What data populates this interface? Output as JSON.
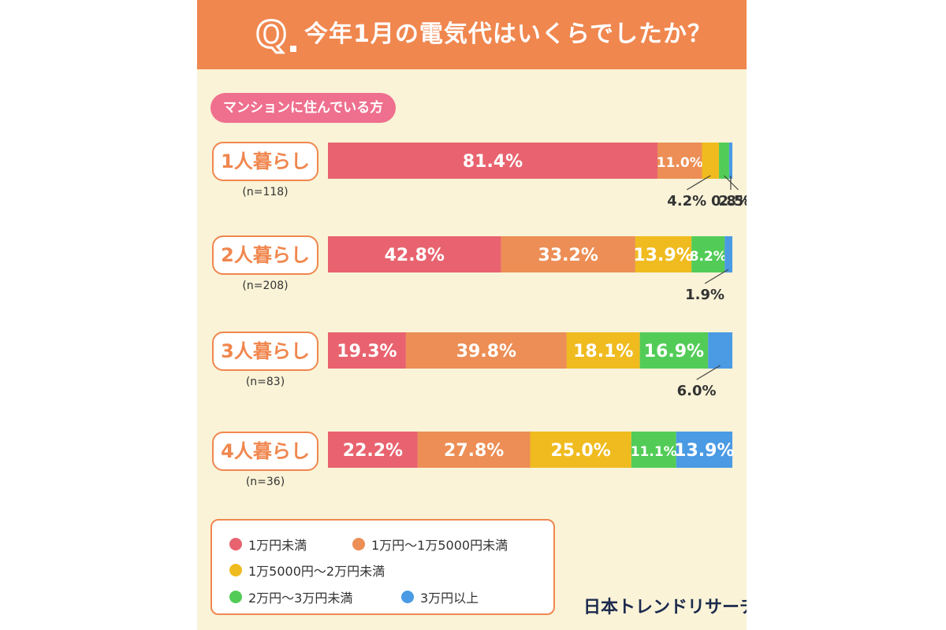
{
  "question": {
    "marker": "Q",
    "text": "今年1月の電気代はいくらでしたか？"
  },
  "group_label": "マンションに住んでいる方",
  "chart_data": {
    "type": "bar",
    "orientation": "horizontal",
    "stacked": true,
    "categories": [
      "1人暮らし",
      "2人暮らし",
      "3人暮らし",
      "4人暮らし"
    ],
    "sample_sizes": [
      "(n=118)",
      "(n=208)",
      "(n=83)",
      "(n=36)"
    ],
    "series": [
      {
        "name": "1万円未満",
        "color": "#e8636f",
        "values": [
          81.4,
          42.8,
          19.3,
          22.2
        ]
      },
      {
        "name": "1万円〜1万5000円未満",
        "color": "#ec8e55",
        "values": [
          11.0,
          33.2,
          39.8,
          27.8
        ]
      },
      {
        "name": "1万5000円〜2万円未満",
        "color": "#f0bb1f",
        "values": [
          4.2,
          13.9,
          18.1,
          25.0
        ]
      },
      {
        "name": "2万円〜3万円未満",
        "color": "#52cc57",
        "values": [
          2.5,
          8.2,
          16.9,
          11.1
        ]
      },
      {
        "name": "3万円以上",
        "color": "#4a9ae4",
        "values": [
          0.8,
          1.9,
          6.0,
          13.9
        ]
      }
    ],
    "value_labels": [
      [
        "81.4%",
        "11.0%",
        "4.2%",
        "2.5%",
        "0.8%"
      ],
      [
        "42.8%",
        "33.2%",
        "13.9%",
        "8.2%",
        "1.9%"
      ],
      [
        "19.3%",
        "39.8%",
        "18.1%",
        "16.9%",
        "6.0%"
      ],
      [
        "22.2%",
        "27.8%",
        "25.0%",
        "11.1%",
        "13.9%"
      ]
    ],
    "xlim": [
      0,
      100
    ],
    "legend_position": "bottom-left"
  },
  "legend_items": [
    "1万円未満",
    "1万円〜1万5000円未満",
    "1万5000円〜2万円未満",
    "2万円〜3万円未満",
    "3万円以上"
  ],
  "brand": "日本トレンドリサーチ"
}
